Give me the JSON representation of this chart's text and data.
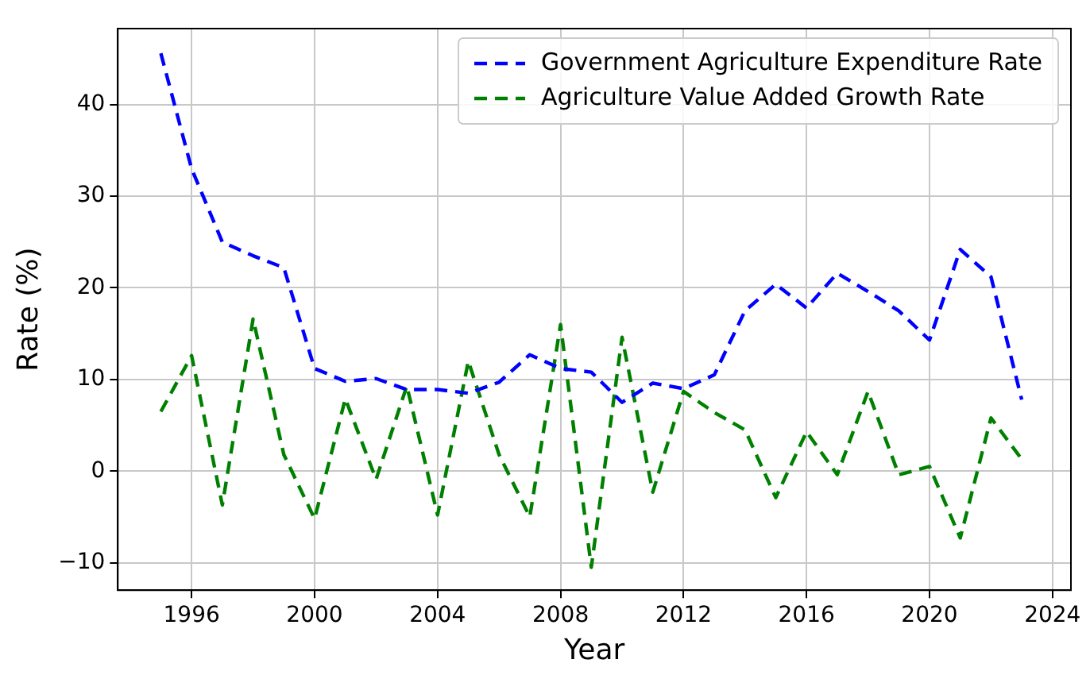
{
  "chart_data": {
    "type": "line",
    "xlabel": "Year",
    "ylabel": "Rate (%)",
    "x": [
      1995,
      1996,
      1997,
      1998,
      1999,
      2000,
      2001,
      2002,
      2003,
      2004,
      2005,
      2006,
      2007,
      2008,
      2009,
      2010,
      2011,
      2012,
      2013,
      2014,
      2015,
      2016,
      2017,
      2018,
      2019,
      2020,
      2021,
      2022,
      2023
    ],
    "series": [
      {
        "name": "Government Agriculture Expenditure Rate",
        "color": "#0000ff",
        "values": [
          45.6,
          33,
          25,
          23.5,
          22.2,
          11.2,
          9.8,
          10.1,
          8.9,
          8.9,
          8.5,
          9.7,
          12.7,
          11.2,
          10.8,
          7.5,
          9.6,
          9.0,
          10.5,
          17.5,
          20.4,
          17.8,
          21.6,
          19.6,
          17.5,
          14.3,
          24.2,
          21.2,
          7.8
        ]
      },
      {
        "name": "Agriculture Value Added Growth Rate",
        "color": "#008000",
        "values": [
          6.5,
          12.6,
          -3.7,
          16.6,
          1.8,
          -5.2,
          7.9,
          -0.9,
          9.3,
          -4.8,
          12,
          1.8,
          -5,
          16,
          -10.5,
          14.6,
          -2.3,
          8.7,
          6.4,
          4.5,
          -2.9,
          4.3,
          -0.4,
          8.7,
          -0.4,
          0.5,
          -7.3,
          5.8,
          1.3
        ]
      }
    ],
    "xlim": [
      1993.6,
      2024.6
    ],
    "xticks": [
      1996,
      2000,
      2004,
      2008,
      2012,
      2016,
      2020,
      2024
    ],
    "ylim": [
      -13,
      48.3
    ],
    "yticks": [
      -10,
      0,
      10,
      20,
      30,
      40
    ],
    "grid": true,
    "legend": "top right",
    "line_style": "dashed",
    "marker": "none"
  }
}
